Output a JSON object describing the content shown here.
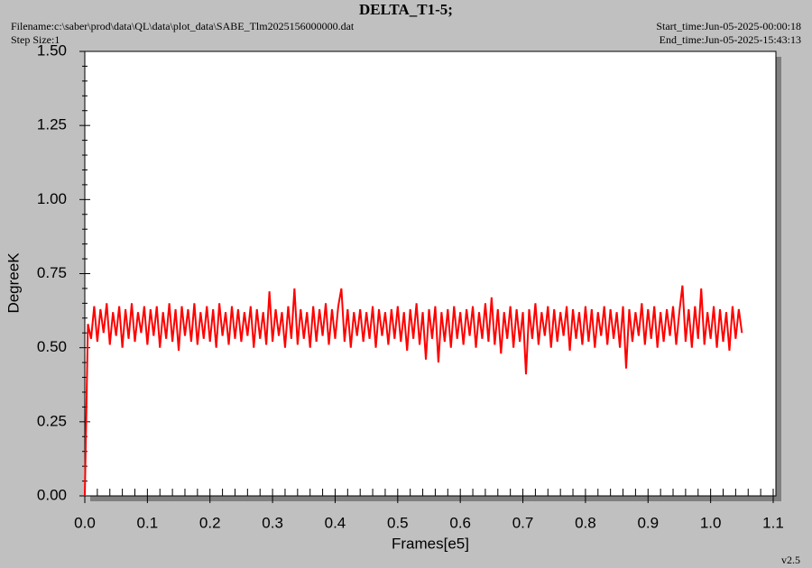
{
  "chart_data": {
    "type": "line",
    "title": "DELTA_T1-5;",
    "filename": "Filename:c:\\saber\\prod\\data\\QL\\data\\plot_data\\SABE_Tlm2025156000000.dat",
    "step_size": "Step Size:1",
    "start_time": "Start_time:Jun-05-2025-00:00:18",
    "end_time": "End_time:Jun-05-2025-15:43:13",
    "version": "v2.5",
    "xlabel": "Frames[e5]",
    "ylabel": "DegreeK",
    "color": "#ff0000",
    "xlim": [
      0,
      1.1
    ],
    "ylim": [
      0,
      1.5
    ],
    "xticks": [
      {
        "value": 0,
        "label": "0.0"
      },
      0.1,
      0.2,
      0.3,
      0.4,
      0.5,
      0.6,
      0.7,
      0.8,
      0.9,
      {
        "value": 1,
        "label": "1.0"
      },
      1.1
    ],
    "yticks": [
      {
        "value": 0,
        "label": "0.00"
      },
      {
        "value": 0.25,
        "label": "0.25"
      },
      {
        "value": 0.5,
        "label": "0.50"
      },
      {
        "value": 0.75,
        "label": "0.75"
      },
      {
        "value": 1,
        "label": "1.00"
      },
      {
        "value": 1.25,
        "label": "1.25"
      },
      {
        "value": 1.5,
        "label": "1.50"
      }
    ],
    "xminorticks": [
      0.02,
      0.04,
      0.06,
      0.08,
      0.12,
      0.14,
      0.16,
      0.18,
      0.22,
      0.24,
      0.26,
      0.28,
      0.32,
      0.34,
      0.36,
      0.38,
      0.42,
      0.44,
      0.46,
      0.48,
      0.52,
      0.54,
      0.56,
      0.58,
      0.62,
      0.64,
      0.66,
      0.68,
      0.72,
      0.74,
      0.76,
      0.78,
      0.82,
      0.84,
      0.86,
      0.88,
      0.92,
      0.94,
      0.96,
      0.98,
      1.02,
      1.04,
      1.06,
      1.08
    ],
    "yminorticks": [
      0.05,
      0.1,
      0.15,
      0.2,
      0.3,
      0.35,
      0.4,
      0.45,
      0.55,
      0.6,
      0.65,
      0.7,
      0.8,
      0.85,
      0.9,
      0.95,
      1.05,
      1.1,
      1.15,
      1.2,
      1.3,
      1.35,
      1.4,
      1.45
    ],
    "x": [
      0,
      0.005,
      0.01,
      0.015,
      0.02,
      0.025,
      0.03,
      0.035,
      0.04,
      0.045,
      0.05,
      0.055,
      0.06,
      0.065,
      0.07,
      0.075,
      0.08,
      0.085,
      0.09,
      0.095,
      0.1,
      0.105,
      0.11,
      0.115,
      0.12,
      0.125,
      0.13,
      0.135,
      0.14,
      0.145,
      0.15,
      0.155,
      0.16,
      0.165,
      0.17,
      0.175,
      0.18,
      0.185,
      0.19,
      0.195,
      0.2,
      0.205,
      0.21,
      0.215,
      0.22,
      0.225,
      0.23,
      0.235,
      0.24,
      0.245,
      0.25,
      0.255,
      0.26,
      0.265,
      0.27,
      0.275,
      0.28,
      0.285,
      0.29,
      0.295,
      0.3,
      0.305,
      0.31,
      0.315,
      0.32,
      0.325,
      0.33,
      0.335,
      0.34,
      0.345,
      0.35,
      0.355,
      0.36,
      0.365,
      0.37,
      0.375,
      0.38,
      0.385,
      0.39,
      0.395,
      0.4,
      0.405,
      0.41,
      0.415,
      0.42,
      0.425,
      0.43,
      0.435,
      0.44,
      0.445,
      0.45,
      0.455,
      0.46,
      0.465,
      0.47,
      0.475,
      0.48,
      0.485,
      0.49,
      0.495,
      0.5,
      0.505,
      0.51,
      0.515,
      0.52,
      0.525,
      0.53,
      0.535,
      0.54,
      0.545,
      0.55,
      0.555,
      0.56,
      0.565,
      0.57,
      0.575,
      0.58,
      0.585,
      0.59,
      0.595,
      0.6,
      0.605,
      0.61,
      0.615,
      0.62,
      0.625,
      0.63,
      0.635,
      0.64,
      0.645,
      0.65,
      0.655,
      0.66,
      0.665,
      0.67,
      0.675,
      0.68,
      0.685,
      0.69,
      0.695,
      0.7,
      0.705,
      0.71,
      0.715,
      0.72,
      0.725,
      0.73,
      0.735,
      0.74,
      0.745,
      0.75,
      0.755,
      0.76,
      0.765,
      0.77,
      0.775,
      0.78,
      0.785,
      0.79,
      0.795,
      0.8,
      0.805,
      0.81,
      0.815,
      0.82,
      0.825,
      0.83,
      0.835,
      0.84,
      0.845,
      0.85,
      0.855,
      0.86,
      0.865,
      0.87,
      0.875,
      0.88,
      0.885,
      0.89,
      0.895,
      0.9,
      0.905,
      0.91,
      0.915,
      0.92,
      0.925,
      0.93,
      0.935,
      0.94,
      0.945,
      0.95,
      0.955,
      0.96,
      0.965,
      0.97,
      0.975,
      0.98,
      0.985,
      0.99,
      0.995,
      1,
      1.005,
      1.01,
      1.015,
      1.02,
      1.025,
      1.03,
      1.035,
      1.04,
      1.045,
      1.05
    ],
    "values": [
      0,
      0.58,
      0.53,
      0.64,
      0.52,
      0.63,
      0.55,
      0.65,
      0.51,
      0.62,
      0.54,
      0.64,
      0.5,
      0.63,
      0.53,
      0.65,
      0.52,
      0.62,
      0.55,
      0.64,
      0.51,
      0.63,
      0.54,
      0.64,
      0.5,
      0.62,
      0.53,
      0.65,
      0.52,
      0.63,
      0.49,
      0.64,
      0.54,
      0.63,
      0.52,
      0.65,
      0.51,
      0.62,
      0.53,
      0.64,
      0.52,
      0.63,
      0.5,
      0.65,
      0.54,
      0.62,
      0.51,
      0.64,
      0.53,
      0.63,
      0.52,
      0.62,
      0.54,
      0.64,
      0.5,
      0.63,
      0.53,
      0.62,
      0.51,
      0.69,
      0.52,
      0.63,
      0.54,
      0.62,
      0.5,
      0.64,
      0.53,
      0.7,
      0.51,
      0.63,
      0.53,
      0.62,
      0.5,
      0.64,
      0.52,
      0.63,
      0.54,
      0.65,
      0.51,
      0.63,
      0.53,
      0.64,
      0.7,
      0.52,
      0.63,
      0.5,
      0.62,
      0.54,
      0.63,
      0.52,
      0.62,
      0.53,
      0.64,
      0.5,
      0.63,
      0.54,
      0.62,
      0.51,
      0.63,
      0.53,
      0.64,
      0.52,
      0.62,
      0.49,
      0.63,
      0.53,
      0.65,
      0.51,
      0.62,
      0.46,
      0.63,
      0.53,
      0.64,
      0.45,
      0.62,
      0.52,
      0.63,
      0.5,
      0.64,
      0.53,
      0.62,
      0.51,
      0.63,
      0.54,
      0.64,
      0.5,
      0.62,
      0.53,
      0.65,
      0.52,
      0.67,
      0.51,
      0.63,
      0.48,
      0.62,
      0.53,
      0.64,
      0.5,
      0.63,
      0.52,
      0.62,
      0.41,
      0.63,
      0.53,
      0.65,
      0.51,
      0.62,
      0.54,
      0.64,
      0.5,
      0.63,
      0.52,
      0.62,
      0.54,
      0.64,
      0.49,
      0.63,
      0.53,
      0.62,
      0.51,
      0.64,
      0.52,
      0.63,
      0.5,
      0.62,
      0.54,
      0.64,
      0.51,
      0.63,
      0.53,
      0.62,
      0.5,
      0.64,
      0.43,
      0.63,
      0.52,
      0.62,
      0.54,
      0.65,
      0.51,
      0.63,
      0.53,
      0.64,
      0.5,
      0.62,
      0.52,
      0.63,
      0.54,
      0.64,
      0.51,
      0.62,
      0.71,
      0.52,
      0.63,
      0.5,
      0.64,
      0.53,
      0.7,
      0.51,
      0.62,
      0.53,
      0.64,
      0.5,
      0.63,
      0.52,
      0.62,
      0.49,
      0.64,
      0.53,
      0.63,
      0.55
    ]
  }
}
